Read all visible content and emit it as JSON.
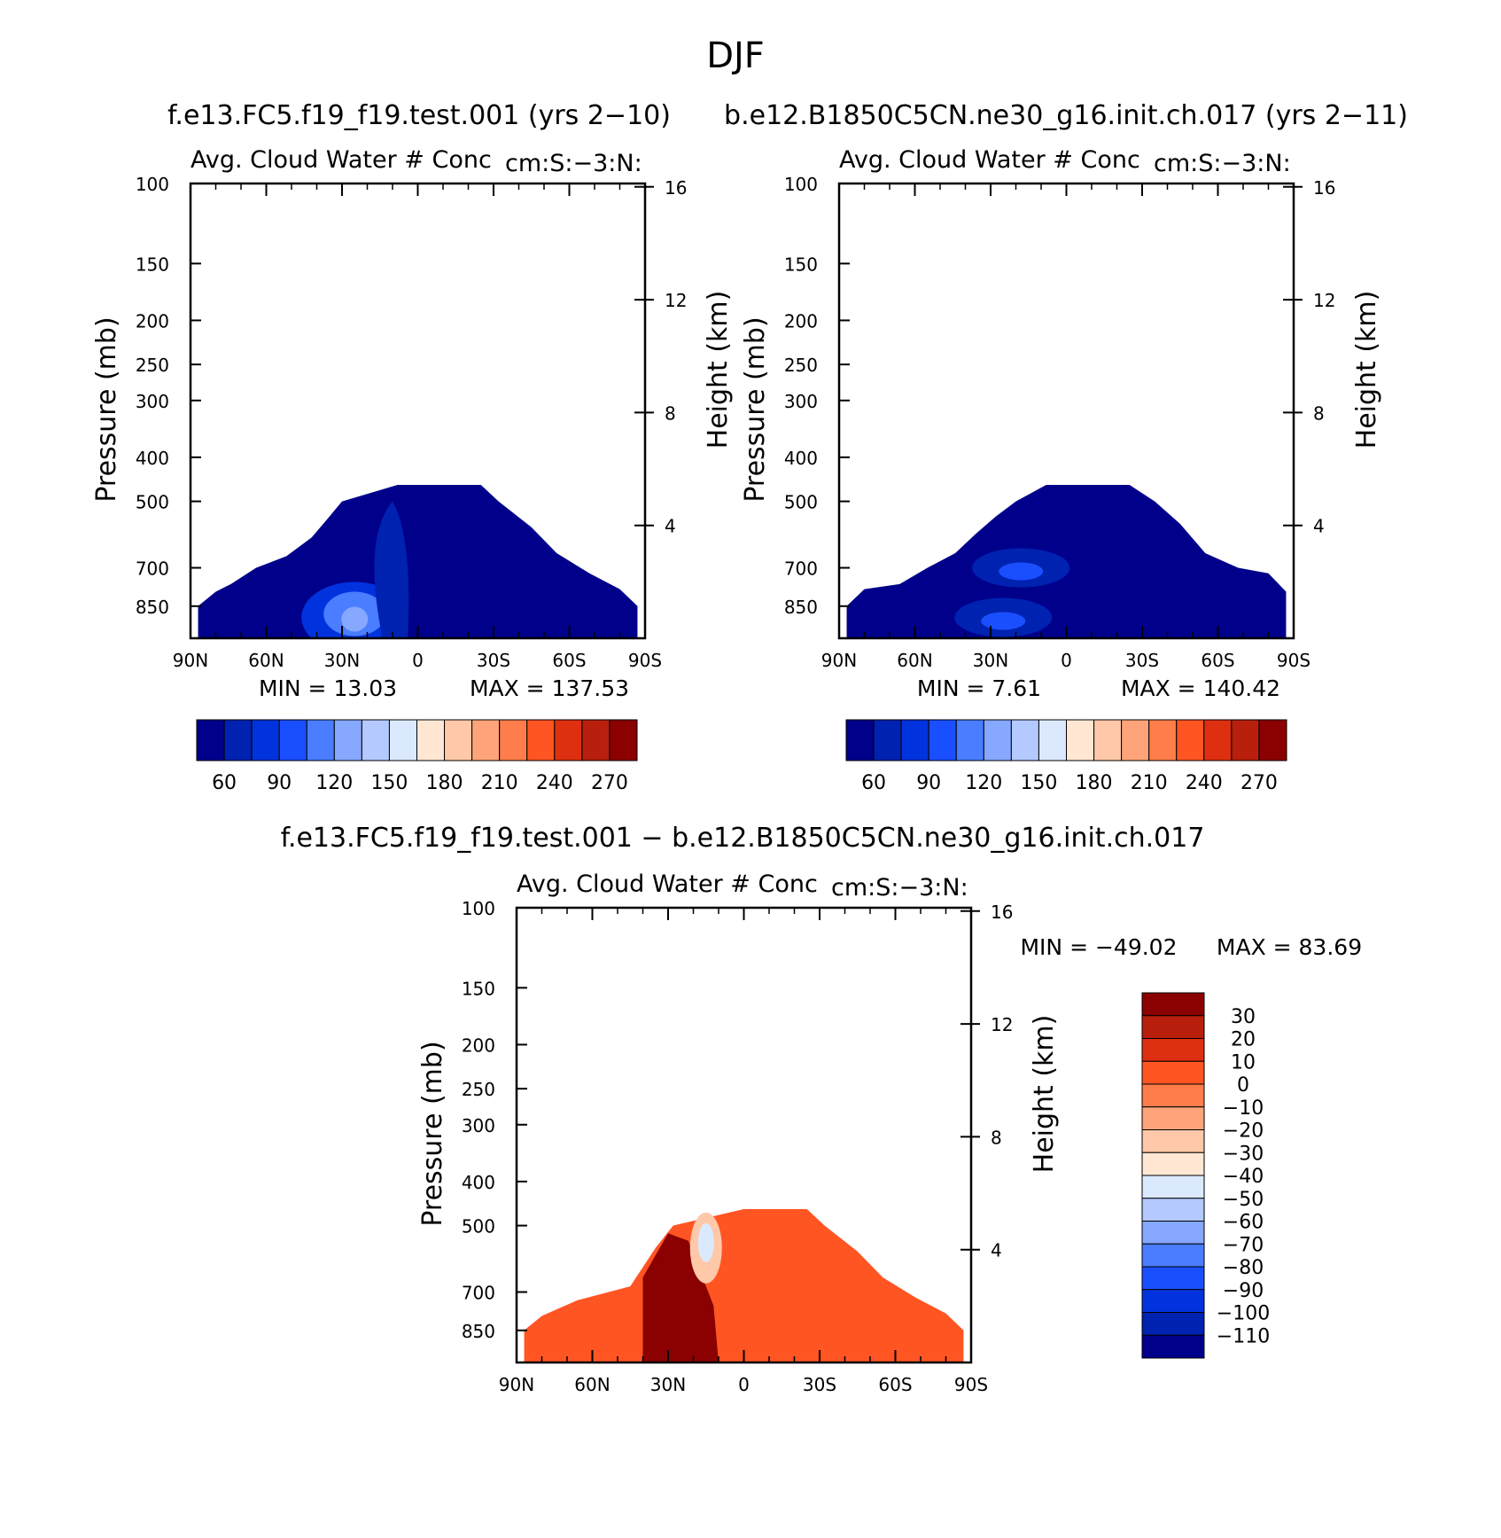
{
  "page_title": "DJF",
  "colors": {
    "abs_scale": [
      "#00008b",
      "#0022b0",
      "#0033dd",
      "#1a4fff",
      "#4a7dff",
      "#86a8ff",
      "#b3c9ff",
      "#dbe9ff",
      "#ffe7d4",
      "#ffc8a8",
      "#ffa47a",
      "#ff7d4a",
      "#ff5523",
      "#de3010",
      "#b81f0c",
      "#8b0000"
    ],
    "diff_scale": [
      "#00008b",
      "#0022b0",
      "#0033dd",
      "#1a4fff",
      "#4a7dff",
      "#86a8ff",
      "#b3c9ff",
      "#dbe9ff",
      "#ffe7d4",
      "#ffc8a8",
      "#ffa47a",
      "#ff7d4a",
      "#ff5523",
      "#de3010",
      "#b81f0c",
      "#8b0000"
    ]
  },
  "chart_data": [
    {
      "type": "heatmap",
      "case_title": "f.e13.FC5.f19_f19.test.001 (yrs 2−10)",
      "title": "Avg. Cloud Water # Conc",
      "units": "cm:S:−3:N:",
      "xlabel": "",
      "ylabel": "Pressure (mb)",
      "y2label": "Height (km)",
      "x_ticks": [
        "90N",
        "60N",
        "30N",
        "0",
        "30S",
        "60S",
        "90S"
      ],
      "y_ticks": [
        "100",
        "150",
        "200",
        "250",
        "300",
        "400",
        "500",
        "700",
        "850"
      ],
      "y2_ticks": [
        "16",
        "12",
        "8",
        "4"
      ],
      "min_label": "MIN = 13.03",
      "max_label": "MAX = 137.53",
      "min": 13.03,
      "max": 137.53,
      "colorbar_labels": [
        "60",
        "90",
        "120",
        "150",
        "180",
        "210",
        "240",
        "270"
      ],
      "contour_levels": [
        45,
        60,
        75,
        90,
        105,
        120,
        135,
        150,
        165,
        180,
        195,
        210,
        225,
        240,
        255,
        270
      ],
      "data_top_profile": [
        {
          "lat": 87,
          "p": 850
        },
        {
          "lat": 80,
          "p": 790
        },
        {
          "lat": 74,
          "p": 760
        },
        {
          "lat": 64,
          "p": 700
        },
        {
          "lat": 52,
          "p": 660
        },
        {
          "lat": 42,
          "p": 600
        },
        {
          "lat": 35,
          "p": 540
        },
        {
          "lat": 30,
          "p": 500
        },
        {
          "lat": 8,
          "p": 460
        },
        {
          "lat": 0,
          "p": 460
        },
        {
          "lat": -25,
          "p": 460
        },
        {
          "lat": -32,
          "p": 500
        },
        {
          "lat": -45,
          "p": 570
        },
        {
          "lat": -55,
          "p": 650
        },
        {
          "lat": -68,
          "p": 720
        },
        {
          "lat": -80,
          "p": 780
        },
        {
          "lat": -87,
          "p": 850
        }
      ],
      "features": [
        {
          "lat": 25,
          "p": 900,
          "level": 4,
          "desc": "max near 25N low levels"
        },
        {
          "lat": 12,
          "p": 620,
          "level": 2,
          "desc": "tongue rising 10-20N"
        }
      ]
    },
    {
      "type": "heatmap",
      "case_title": "b.e12.B1850C5CN.ne30_g16.init.ch.017 (yrs 2−11)",
      "title": "Avg. Cloud Water # Conc",
      "units": "cm:S:−3:N:",
      "xlabel": "",
      "ylabel": "Pressure (mb)",
      "y2label": "Height (km)",
      "x_ticks": [
        "90N",
        "60N",
        "30N",
        "0",
        "30S",
        "60S",
        "90S"
      ],
      "y_ticks": [
        "100",
        "150",
        "200",
        "250",
        "300",
        "400",
        "500",
        "700",
        "850"
      ],
      "y2_ticks": [
        "16",
        "12",
        "8",
        "4"
      ],
      "min_label": "MIN = 7.61",
      "max_label": "MAX = 140.42",
      "min": 7.61,
      "max": 140.42,
      "colorbar_labels": [
        "60",
        "90",
        "120",
        "150",
        "180",
        "210",
        "240",
        "270"
      ],
      "contour_levels": [
        45,
        60,
        75,
        90,
        105,
        120,
        135,
        150,
        165,
        180,
        195,
        210,
        225,
        240,
        255,
        270
      ],
      "data_top_profile": [
        {
          "lat": 87,
          "p": 850
        },
        {
          "lat": 80,
          "p": 780
        },
        {
          "lat": 66,
          "p": 760
        },
        {
          "lat": 55,
          "p": 700
        },
        {
          "lat": 44,
          "p": 650
        },
        {
          "lat": 36,
          "p": 590
        },
        {
          "lat": 28,
          "p": 540
        },
        {
          "lat": 20,
          "p": 500
        },
        {
          "lat": 8,
          "p": 460
        },
        {
          "lat": 0,
          "p": 460
        },
        {
          "lat": -25,
          "p": 460
        },
        {
          "lat": -35,
          "p": 500
        },
        {
          "lat": -45,
          "p": 560
        },
        {
          "lat": -55,
          "p": 650
        },
        {
          "lat": -68,
          "p": 700
        },
        {
          "lat": -80,
          "p": 720
        },
        {
          "lat": -87,
          "p": 790
        }
      ],
      "features": [
        {
          "lat": 25,
          "p": 900,
          "level": 3,
          "desc": "lighter blue near 30N surface"
        },
        {
          "lat": 18,
          "p": 700,
          "level": 1,
          "desc": "weak maximum 10-25N"
        }
      ]
    },
    {
      "type": "heatmap",
      "case_title": "f.e13.FC5.f19_f19.test.001 − b.e12.B1850C5CN.ne30_g16.init.ch.017",
      "title": "Avg. Cloud Water # Conc",
      "units": "cm:S:−3:N:",
      "xlabel": "",
      "ylabel": "Pressure (mb)",
      "y2label": "Height (km)",
      "x_ticks": [
        "90N",
        "60N",
        "30N",
        "0",
        "30S",
        "60S",
        "90S"
      ],
      "y_ticks": [
        "100",
        "150",
        "200",
        "250",
        "300",
        "400",
        "500",
        "700",
        "850"
      ],
      "y2_ticks": [
        "16",
        "12",
        "8",
        "4"
      ],
      "min_label": "MIN = −49.02",
      "max_label": "MAX = 83.69",
      "min": -49.02,
      "max": 83.69,
      "colorbar_labels": [
        "30",
        "20",
        "10",
        "0",
        "−10",
        "−20",
        "−30",
        "−40",
        "−50",
        "−60",
        "−70",
        "−80",
        "−90",
        "−100",
        "−110"
      ],
      "contour_levels": [
        -110,
        -100,
        -90,
        -80,
        -70,
        -60,
        -50,
        -40,
        -30,
        -20,
        -10,
        0,
        10,
        20,
        30
      ],
      "data_top_profile": [
        {
          "lat": 87,
          "p": 850
        },
        {
          "lat": 80,
          "p": 790
        },
        {
          "lat": 66,
          "p": 730
        },
        {
          "lat": 45,
          "p": 680
        },
        {
          "lat": 35,
          "p": 560
        },
        {
          "lat": 28,
          "p": 500
        },
        {
          "lat": 0,
          "p": 460
        },
        {
          "lat": -25,
          "p": 460
        },
        {
          "lat": -32,
          "p": 500
        },
        {
          "lat": -45,
          "p": 570
        },
        {
          "lat": -55,
          "p": 650
        },
        {
          "lat": -68,
          "p": 720
        },
        {
          "lat": -80,
          "p": 780
        },
        {
          "lat": -87,
          "p": 850
        }
      ],
      "features": [
        {
          "lat": 28,
          "p": 850,
          "level": 15,
          "desc": "dark red max 20-40N lower troposphere"
        },
        {
          "lat": 15,
          "p": 560,
          "level": 7,
          "desc": "light/near zero core near 15N 500-600mb"
        }
      ]
    }
  ]
}
